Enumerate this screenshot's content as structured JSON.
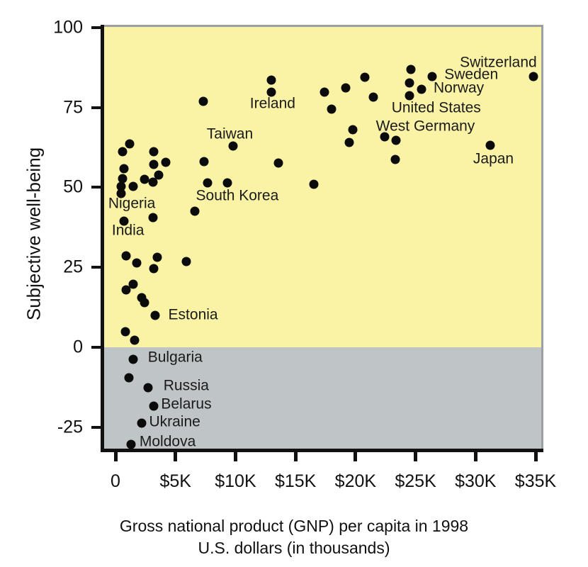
{
  "chart_data": {
    "type": "scatter",
    "title": "",
    "ylabel": "Subjective well-being",
    "xlabel_line1": "Gross national product (GNP) per capita in 1998",
    "xlabel_line2": "U.S. dollars (in thousands)",
    "xlim": [
      -1.0,
      35.5
    ],
    "ylim": [
      -31.7,
      100.2
    ],
    "grid": false,
    "legend": "none",
    "x_unit": "thousands of U.S. dollars",
    "x_ticks": [
      {
        "v": 0,
        "label": "0"
      },
      {
        "v": 5,
        "label": "$5K"
      },
      {
        "v": 10,
        "label": "$10K"
      },
      {
        "v": 15,
        "label": "$15K"
      },
      {
        "v": 20,
        "label": "$20K"
      },
      {
        "v": 25,
        "label": "$25K"
      },
      {
        "v": 30,
        "label": "$30K"
      },
      {
        "v": 35,
        "label": "$35K"
      }
    ],
    "y_ticks": [
      {
        "v": 100,
        "label": "100"
      },
      {
        "v": 75,
        "label": "75"
      },
      {
        "v": 50,
        "label": "50"
      },
      {
        "v": 25,
        "label": "25"
      },
      {
        "v": 0,
        "label": "0"
      },
      {
        "v": -25,
        "label": "-25"
      }
    ],
    "regions": [
      {
        "name": "positive-wellbeing-band",
        "y_from": 0,
        "y_to": 100.2,
        "color": "#faf3a6"
      },
      {
        "name": "negative-wellbeing-band",
        "y_from": -31.7,
        "y_to": 0,
        "color": "#bfc4c6"
      }
    ],
    "points": [
      {
        "x": 24.6,
        "y": 86.9
      },
      {
        "x": 20.8,
        "y": 84.4
      },
      {
        "x": 26.4,
        "y": 84.7,
        "country": "Sweden"
      },
      {
        "x": 24.5,
        "y": 82.7
      },
      {
        "x": 19.2,
        "y": 81.1
      },
      {
        "x": 25.5,
        "y": 80.7,
        "country": "Norway"
      },
      {
        "x": 17.4,
        "y": 79.8
      },
      {
        "x": 24.5,
        "y": 78.7,
        "country": "United States"
      },
      {
        "x": 21.5,
        "y": 78.2
      },
      {
        "x": 18.0,
        "y": 74.5
      },
      {
        "x": 34.8,
        "y": 84.7,
        "country": "Switzerland"
      },
      {
        "x": 19.8,
        "y": 68.0,
        "country": "West Germany"
      },
      {
        "x": 19.5,
        "y": 64.1
      },
      {
        "x": 22.4,
        "y": 65.8
      },
      {
        "x": 23.4,
        "y": 64.7
      },
      {
        "x": 23.3,
        "y": 58.7
      },
      {
        "x": 31.2,
        "y": 63.2,
        "country": "Japan"
      },
      {
        "x": 16.5,
        "y": 51.0
      },
      {
        "x": 13.0,
        "y": 83.6
      },
      {
        "x": 13.0,
        "y": 79.8,
        "country": "Ireland"
      },
      {
        "x": 7.3,
        "y": 76.9
      },
      {
        "x": 9.8,
        "y": 62.9,
        "country": "Taiwan"
      },
      {
        "x": 13.6,
        "y": 57.6
      },
      {
        "x": 1.2,
        "y": 63.6
      },
      {
        "x": 0.6,
        "y": 61.2
      },
      {
        "x": 3.2,
        "y": 61.2
      },
      {
        "x": 0.7,
        "y": 55.9
      },
      {
        "x": 3.2,
        "y": 57.2
      },
      {
        "x": 4.2,
        "y": 57.8
      },
      {
        "x": 0.6,
        "y": 52.8
      },
      {
        "x": 0.5,
        "y": 50.3
      },
      {
        "x": 0.5,
        "y": 48.1,
        "country": "Nigeria"
      },
      {
        "x": 1.5,
        "y": 50.3
      },
      {
        "x": 2.4,
        "y": 52.5
      },
      {
        "x": 3.1,
        "y": 51.6
      },
      {
        "x": 3.6,
        "y": 53.8
      },
      {
        "x": 7.4,
        "y": 58.0
      },
      {
        "x": 7.7,
        "y": 51.4,
        "country": "South Korea"
      },
      {
        "x": 9.3,
        "y": 51.4
      },
      {
        "x": 6.6,
        "y": 42.6
      },
      {
        "x": 0.7,
        "y": 39.5,
        "country": "India"
      },
      {
        "x": 3.1,
        "y": 40.6
      },
      {
        "x": 0.9,
        "y": 28.6
      },
      {
        "x": 1.8,
        "y": 26.4
      },
      {
        "x": 3.5,
        "y": 28.2
      },
      {
        "x": 3.2,
        "y": 24.6
      },
      {
        "x": 5.9,
        "y": 26.9
      },
      {
        "x": 1.5,
        "y": 19.7
      },
      {
        "x": 0.9,
        "y": 18.0
      },
      {
        "x": 2.2,
        "y": 15.5
      },
      {
        "x": 2.4,
        "y": 14.0
      },
      {
        "x": 3.3,
        "y": 10.0,
        "country": "Estonia"
      },
      {
        "x": 0.8,
        "y": 4.9
      },
      {
        "x": 1.6,
        "y": 2.2
      },
      {
        "x": 1.5,
        "y": -3.8,
        "country": "Bulgaria"
      },
      {
        "x": 1.1,
        "y": -9.6
      },
      {
        "x": 2.7,
        "y": -12.6,
        "country": "Russia"
      },
      {
        "x": 3.2,
        "y": -18.4,
        "country": "Belarus"
      },
      {
        "x": 2.2,
        "y": -23.7,
        "country": "Ukraine"
      },
      {
        "x": 1.3,
        "y": -30.4,
        "country": "Moldova"
      }
    ],
    "annotations": [
      {
        "text": "Switzerland",
        "x": 35.1,
        "y": 88.9,
        "align": "right"
      },
      {
        "text": "Sweden",
        "x": 27.4,
        "y": 85.0,
        "align": "left"
      },
      {
        "text": "Norway",
        "x": 26.5,
        "y": 80.8,
        "align": "left"
      },
      {
        "text": "United States",
        "x": 23.0,
        "y": 74.8,
        "align": "left"
      },
      {
        "text": "West Germany",
        "x": 21.7,
        "y": 69.0,
        "align": "left"
      },
      {
        "text": "Japan",
        "x": 29.8,
        "y": 58.7,
        "align": "left"
      },
      {
        "text": "Ireland",
        "x": 11.2,
        "y": 76.0,
        "align": "left"
      },
      {
        "text": "Taiwan",
        "x": 7.6,
        "y": 66.4,
        "align": "left"
      },
      {
        "text": "South Korea",
        "x": 6.7,
        "y": 47.1,
        "align": "left"
      },
      {
        "text": "Nigeria",
        "x": -0.6,
        "y": 44.8,
        "align": "left"
      },
      {
        "text": "India",
        "x": -0.3,
        "y": 36.3,
        "align": "left"
      },
      {
        "text": "Estonia",
        "x": 4.4,
        "y": 10.0,
        "align": "left"
      },
      {
        "text": "Bulgaria",
        "x": 2.7,
        "y": -3.3,
        "align": "left"
      },
      {
        "text": "Russia",
        "x": 4.0,
        "y": -12.2,
        "align": "left"
      },
      {
        "text": "Belarus",
        "x": 3.8,
        "y": -18.0,
        "align": "left"
      },
      {
        "text": "Ukraine",
        "x": 2.8,
        "y": -23.5,
        "align": "left"
      },
      {
        "text": "Moldova",
        "x": 2.0,
        "y": -29.7,
        "align": "left"
      }
    ]
  },
  "style": {
    "dot_color": "#0b0b0b",
    "axis_color": "#111111",
    "frame_color": "#9ba0a2",
    "positive_band_color": "#faf3a6",
    "negative_band_color": "#bfc4c6",
    "text_color": "#1a1a1a"
  }
}
